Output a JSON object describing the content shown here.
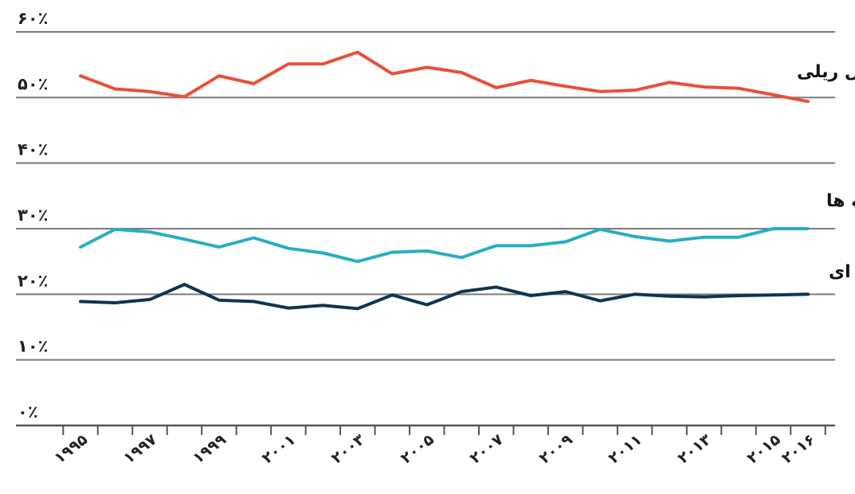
{
  "chart_data": {
    "type": "line",
    "title": "",
    "xlabel": "",
    "ylabel": "",
    "ylim": [
      0,
      60
    ],
    "yticks": [
      0,
      10,
      20,
      30,
      40,
      50,
      60
    ],
    "ytick_labels": [
      "۰٪",
      "۱۰٪",
      "۲۰٪",
      "۳۰٪",
      "۴۰٪",
      "۵۰٪",
      "۶۰٪"
    ],
    "x": [
      1995,
      1996,
      1997,
      1998,
      1999,
      2000,
      2001,
      2002,
      2003,
      2004,
      2005,
      2006,
      2007,
      2008,
      2009,
      2010,
      2011,
      2012,
      2013,
      2014,
      2015,
      2016
    ],
    "xticks": [
      1995,
      1997,
      1999,
      2001,
      2003,
      2005,
      2007,
      2009,
      2011,
      2013,
      2015,
      2016
    ],
    "xtick_labels": [
      "۱۹۹۵",
      "۱۹۹۷",
      "۱۹۹۹",
      "۲۰۰۱",
      "۲۰۰۳",
      "۲۰۰۵",
      "۲۰۰۷",
      "۲۰۰۹",
      "۲۰۱۱",
      "۲۰۱۳",
      "۲۰۱۵",
      "۲۰۱۶"
    ],
    "grid": true,
    "series": [
      {
        "name": "حمل و نقل ریلی",
        "color": "#e8503a",
        "values": [
          53.3,
          51.3,
          50.9,
          50.1,
          53.3,
          52.1,
          55.1,
          55.1,
          56.9,
          53.6,
          54.6,
          53.8,
          51.5,
          52.6,
          51.7,
          50.9,
          51.1,
          52.3,
          51.6,
          51.4,
          50.4,
          49.4
        ]
      },
      {
        "name": "حمل و نقل داخل رودخانه ها",
        "color": "#27aec4",
        "values": [
          27.2,
          29.9,
          29.5,
          28.4,
          27.2,
          28.6,
          27.0,
          26.3,
          25.0,
          26.4,
          26.6,
          25.6,
          27.4,
          27.4,
          28.0,
          29.9,
          28.8,
          28.1,
          28.7,
          28.7,
          30.0,
          30.0
        ]
      },
      {
        "name": "حمل و نقل جاده ای",
        "color": "#0f3450",
        "values": [
          18.9,
          18.7,
          19.2,
          21.5,
          19.1,
          18.9,
          17.9,
          18.3,
          17.8,
          19.9,
          18.4,
          20.4,
          21.1,
          19.8,
          20.4,
          19.0,
          20.0,
          19.7,
          19.6,
          19.8,
          19.9,
          20.0
        ]
      }
    ]
  }
}
